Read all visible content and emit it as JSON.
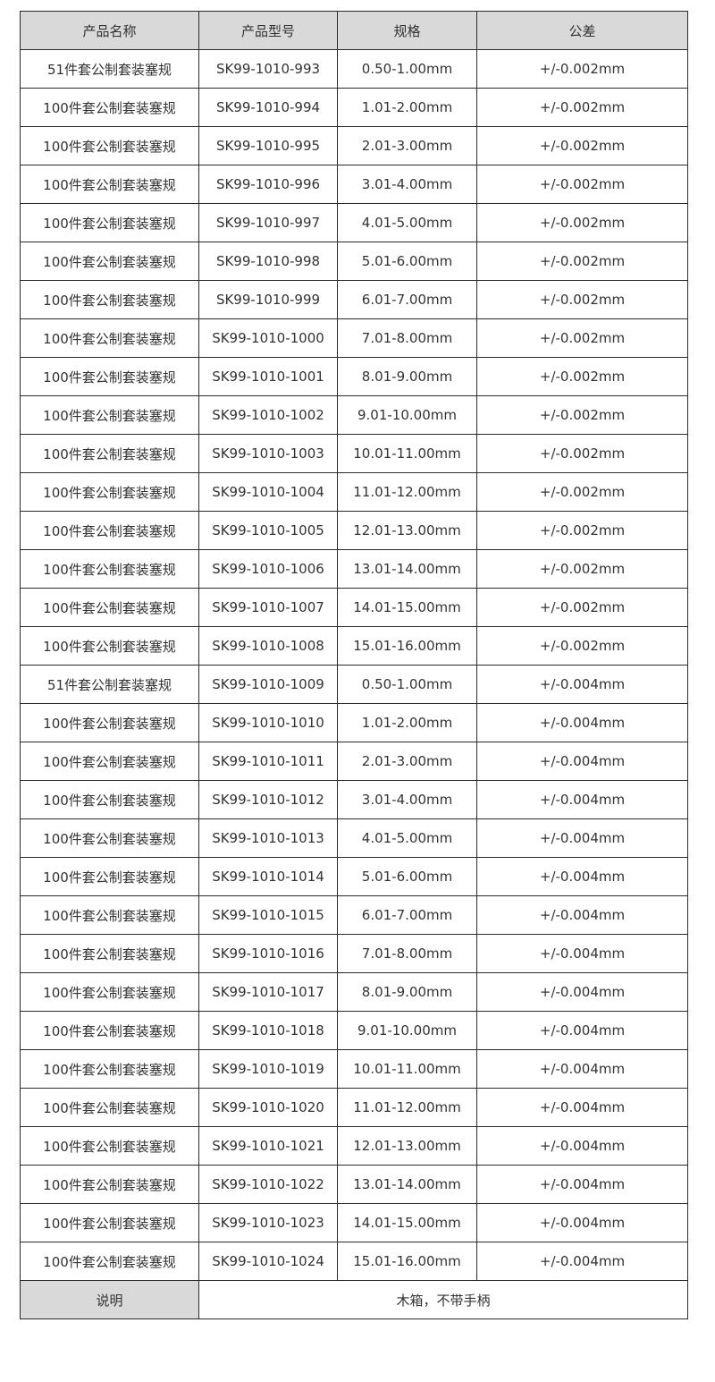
{
  "headers": [
    "产品名称",
    "产品型号",
    "规格",
    "公差"
  ],
  "rows": [
    [
      "51件套公制套装塞规",
      "SK99-1010-993",
      "0.50-1.00mm",
      "+/-0.002mm"
    ],
    [
      "100件套公制套装塞规",
      "SK99-1010-994",
      "1.01-2.00mm",
      "+/-0.002mm"
    ],
    [
      "100件套公制套装塞规",
      "SK99-1010-995",
      "2.01-3.00mm",
      "+/-0.002mm"
    ],
    [
      "100件套公制套装塞规",
      "SK99-1010-996",
      "3.01-4.00mm",
      "+/-0.002mm"
    ],
    [
      "100件套公制套装塞规",
      "SK99-1010-997",
      "4.01-5.00mm",
      "+/-0.002mm"
    ],
    [
      "100件套公制套装塞规",
      "SK99-1010-998",
      "5.01-6.00mm",
      "+/-0.002mm"
    ],
    [
      "100件套公制套装塞规",
      "SK99-1010-999",
      "6.01-7.00mm",
      "+/-0.002mm"
    ],
    [
      "100件套公制套装塞规",
      "SK99-1010-1000",
      "7.01-8.00mm",
      "+/-0.002mm"
    ],
    [
      "100件套公制套装塞规",
      "SK99-1010-1001",
      "8.01-9.00mm",
      "+/-0.002mm"
    ],
    [
      "100件套公制套装塞规",
      "SK99-1010-1002",
      "9.01-10.00mm",
      "+/-0.002mm"
    ],
    [
      "100件套公制套装塞规",
      "SK99-1010-1003",
      "10.01-11.00mm",
      "+/-0.002mm"
    ],
    [
      "100件套公制套装塞规",
      "SK99-1010-1004",
      "11.01-12.00mm",
      "+/-0.002mm"
    ],
    [
      "100件套公制套装塞规",
      "SK99-1010-1005",
      "12.01-13.00mm",
      "+/-0.002mm"
    ],
    [
      "100件套公制套装塞规",
      "SK99-1010-1006",
      "13.01-14.00mm",
      "+/-0.002mm"
    ],
    [
      "100件套公制套装塞规",
      "SK99-1010-1007",
      "14.01-15.00mm",
      "+/-0.002mm"
    ],
    [
      "100件套公制套装塞规",
      "SK99-1010-1008",
      "15.01-16.00mm",
      "+/-0.002mm"
    ],
    [
      "51件套公制套装塞规",
      "SK99-1010-1009",
      "0.50-1.00mm",
      "+/-0.004mm"
    ],
    [
      "100件套公制套装塞规",
      "SK99-1010-1010",
      "1.01-2.00mm",
      "+/-0.004mm"
    ],
    [
      "100件套公制套装塞规",
      "SK99-1010-1011",
      "2.01-3.00mm",
      "+/-0.004mm"
    ],
    [
      "100件套公制套装塞规",
      "SK99-1010-1012",
      "3.01-4.00mm",
      "+/-0.004mm"
    ],
    [
      "100件套公制套装塞规",
      "SK99-1010-1013",
      "4.01-5.00mm",
      "+/-0.004mm"
    ],
    [
      "100件套公制套装塞规",
      "SK99-1010-1014",
      "5.01-6.00mm",
      "+/-0.004mm"
    ],
    [
      "100件套公制套装塞规",
      "SK99-1010-1015",
      "6.01-7.00mm",
      "+/-0.004mm"
    ],
    [
      "100件套公制套装塞规",
      "SK99-1010-1016",
      "7.01-8.00mm",
      "+/-0.004mm"
    ],
    [
      "100件套公制套装塞规",
      "SK99-1010-1017",
      "8.01-9.00mm",
      "+/-0.004mm"
    ],
    [
      "100件套公制套装塞规",
      "SK99-1010-1018",
      "9.01-10.00mm",
      "+/-0.004mm"
    ],
    [
      "100件套公制套装塞规",
      "SK99-1010-1019",
      "10.01-11.00mm",
      "+/-0.004mm"
    ],
    [
      "100件套公制套装塞规",
      "SK99-1010-1020",
      "11.01-12.00mm",
      "+/-0.004mm"
    ],
    [
      "100件套公制套装塞规",
      "SK99-1010-1021",
      "12.01-13.00mm",
      "+/-0.004mm"
    ],
    [
      "100件套公制套装塞规",
      "SK99-1010-1022",
      "13.01-14.00mm",
      "+/-0.004mm"
    ],
    [
      "100件套公制套装塞规",
      "SK99-1010-1023",
      "14.01-15.00mm",
      "+/-0.004mm"
    ],
    [
      "100件套公制套装塞规",
      "SK99-1010-1024",
      "15.01-16.00mm",
      "+/-0.004mm"
    ]
  ],
  "footer": {
    "label": "说明",
    "value": "木箱，不带手柄"
  },
  "colors": {
    "header_bg": "#d9d9d9",
    "border": "#2a2a2a",
    "text": "#333333"
  }
}
